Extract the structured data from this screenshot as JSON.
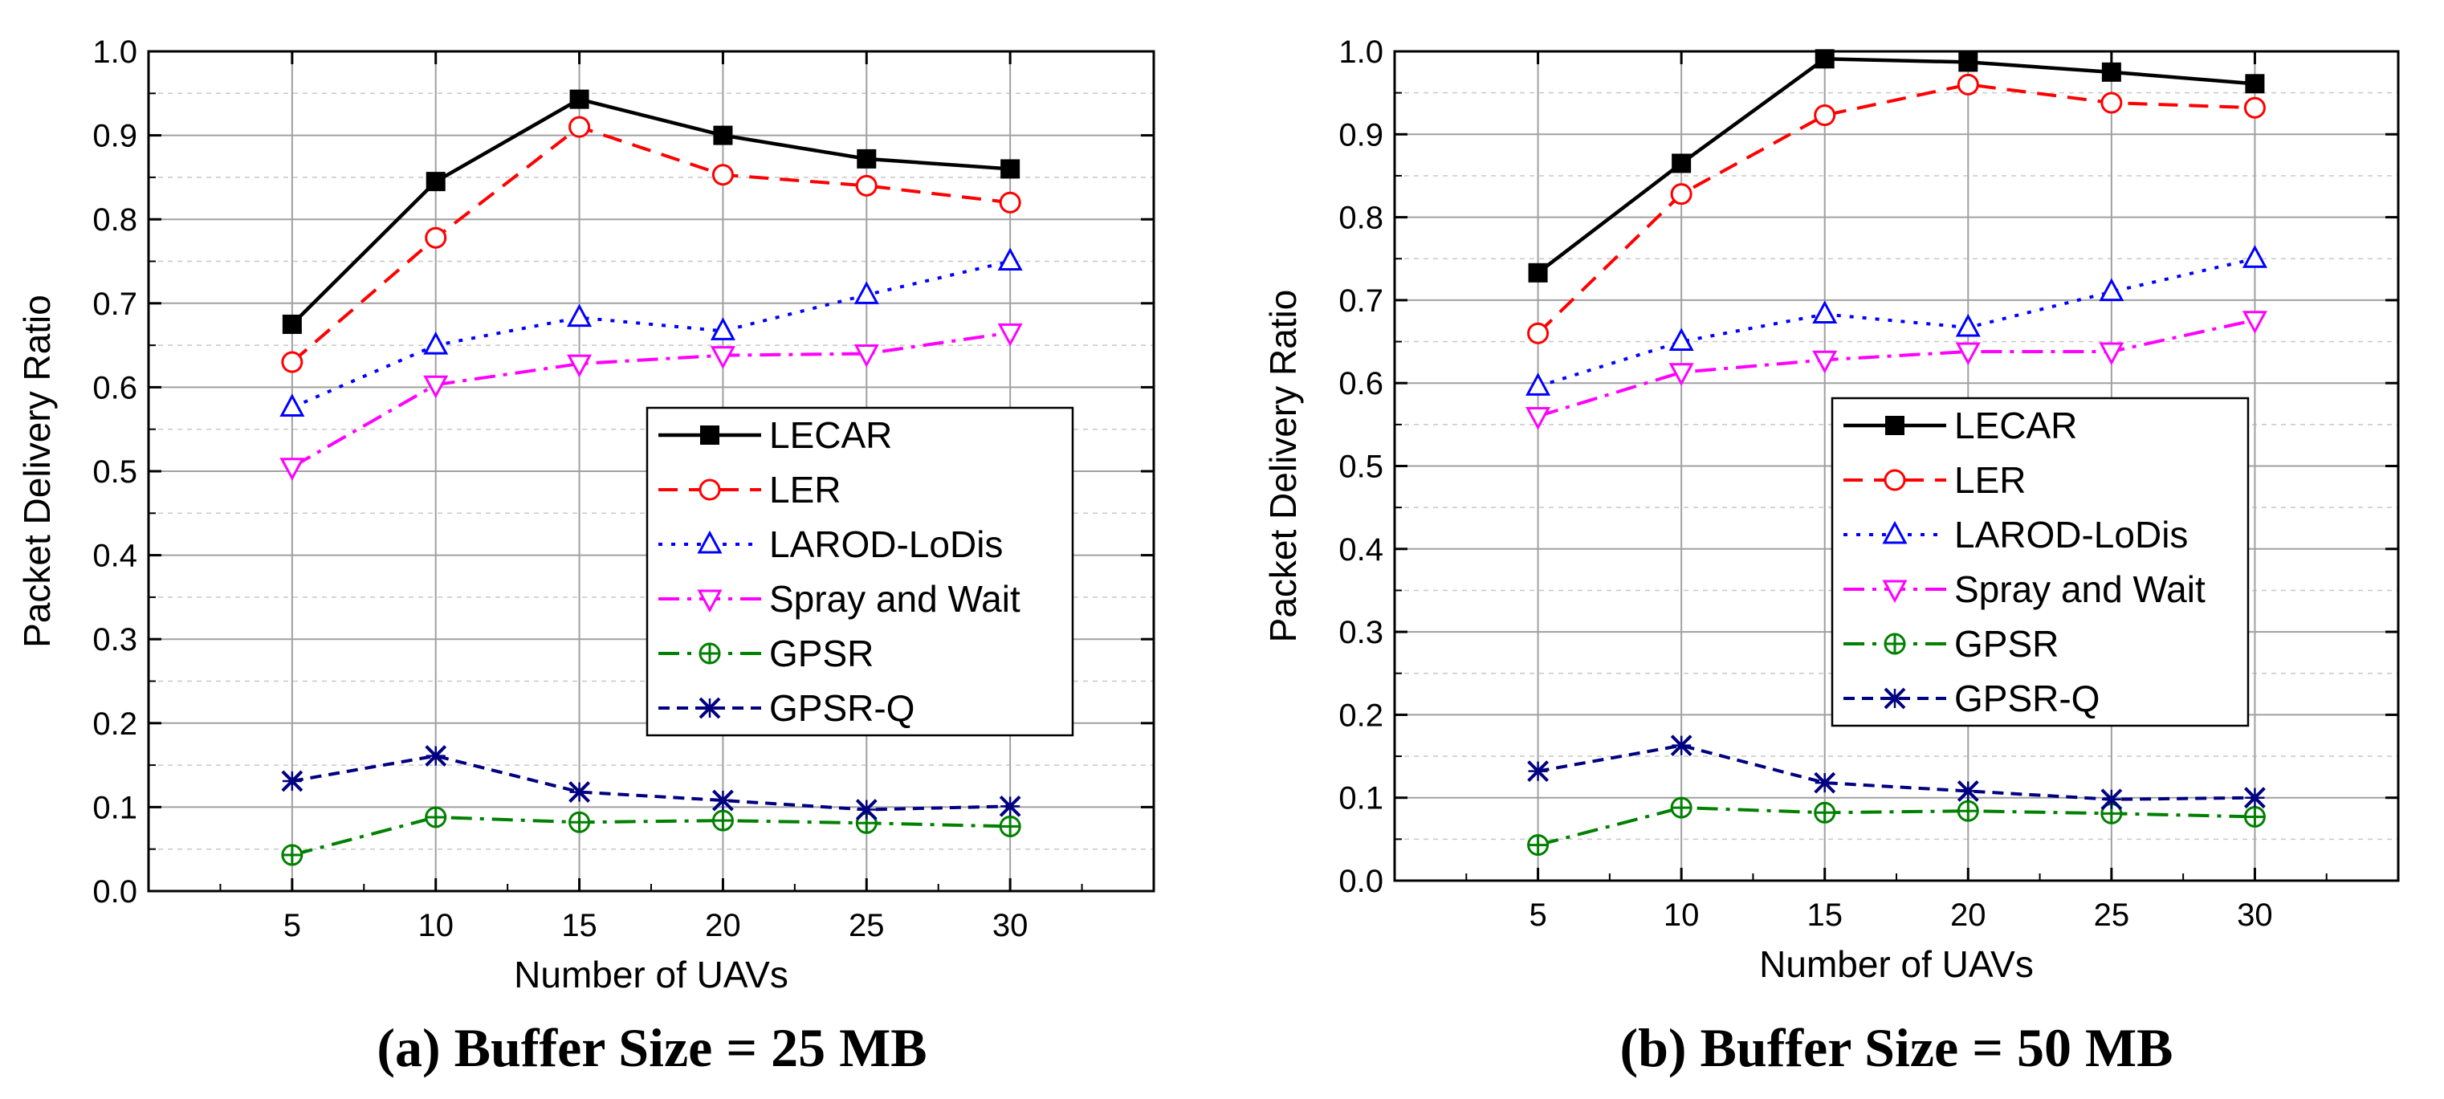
{
  "chart_data": [
    {
      "type": "line",
      "title": "",
      "caption": "(a) Buffer Size = 25 MB",
      "xlabel": "Number of UAVs",
      "ylabel": "Packet Delivery Ratio",
      "x": [
        5,
        10,
        15,
        20,
        25,
        30
      ],
      "xticks": [
        "5",
        "10",
        "15",
        "20",
        "25",
        "30"
      ],
      "xlim": [
        0,
        35
      ],
      "ylim": [
        0,
        1.0
      ],
      "yticks": [
        "0.0",
        "0.1",
        "0.2",
        "0.3",
        "0.4",
        "0.5",
        "0.6",
        "0.7",
        "0.8",
        "0.9",
        "1.0"
      ],
      "grid": true,
      "legend_position": "center-right",
      "series": [
        {
          "name": "LECAR",
          "values": [
            0.675,
            0.845,
            0.943,
            0.9,
            0.872,
            0.86
          ]
        },
        {
          "name": "LER",
          "values": [
            0.63,
            0.778,
            0.91,
            0.853,
            0.84,
            0.82
          ]
        },
        {
          "name": "LAROD-LoDis",
          "values": [
            0.576,
            0.65,
            0.683,
            0.667,
            0.71,
            0.75
          ]
        },
        {
          "name": "Spray and Wait",
          "values": [
            0.505,
            0.603,
            0.628,
            0.638,
            0.64,
            0.665
          ]
        },
        {
          "name": "GPSR",
          "values": [
            0.043,
            0.088,
            0.082,
            0.084,
            0.081,
            0.077
          ]
        },
        {
          "name": "GPSR-Q",
          "values": [
            0.131,
            0.161,
            0.118,
            0.108,
            0.097,
            0.101
          ]
        }
      ]
    },
    {
      "type": "line",
      "title": "",
      "caption": "(b) Buffer Size = 50 MB",
      "xlabel": "Number of UAVs",
      "ylabel": "Packet Delivery Ratio",
      "x": [
        5,
        10,
        15,
        20,
        25,
        30
      ],
      "xticks": [
        "5",
        "10",
        "15",
        "20",
        "25",
        "30"
      ],
      "xlim": [
        0,
        35
      ],
      "ylim": [
        0,
        1.0
      ],
      "yticks": [
        "0.0",
        "0.1",
        "0.2",
        "0.3",
        "0.4",
        "0.5",
        "0.6",
        "0.7",
        "0.8",
        "0.9",
        "1.0"
      ],
      "grid": true,
      "legend_position": "center-right",
      "series": [
        {
          "name": "LECAR",
          "values": [
            0.733,
            0.865,
            0.991,
            0.987,
            0.975,
            0.961
          ]
        },
        {
          "name": "LER",
          "values": [
            0.66,
            0.828,
            0.923,
            0.96,
            0.938,
            0.932
          ]
        },
        {
          "name": "LAROD-LoDis",
          "values": [
            0.596,
            0.65,
            0.683,
            0.667,
            0.71,
            0.75
          ]
        },
        {
          "name": "Spray and Wait",
          "values": [
            0.56,
            0.613,
            0.628,
            0.638,
            0.638,
            0.676
          ]
        },
        {
          "name": "GPSR",
          "values": [
            0.043,
            0.088,
            0.082,
            0.084,
            0.081,
            0.077
          ]
        },
        {
          "name": "GPSR-Q",
          "values": [
            0.132,
            0.163,
            0.118,
            0.108,
            0.098,
            0.1
          ]
        }
      ]
    }
  ],
  "series_styles": [
    {
      "color": "#000000",
      "marker": "square-filled",
      "dash": "solid"
    },
    {
      "color": "#ff0000",
      "marker": "circle-open",
      "dash": "dash"
    },
    {
      "color": "#0000ff",
      "marker": "triangle-up-open",
      "dash": "dot"
    },
    {
      "color": "#ff00ff",
      "marker": "triangle-down-open",
      "dash": "dashdot"
    },
    {
      "color": "#008000",
      "marker": "circle-cross",
      "dash": "dashdot"
    },
    {
      "color": "#000080",
      "marker": "x-star",
      "dash": "shortdash"
    }
  ]
}
